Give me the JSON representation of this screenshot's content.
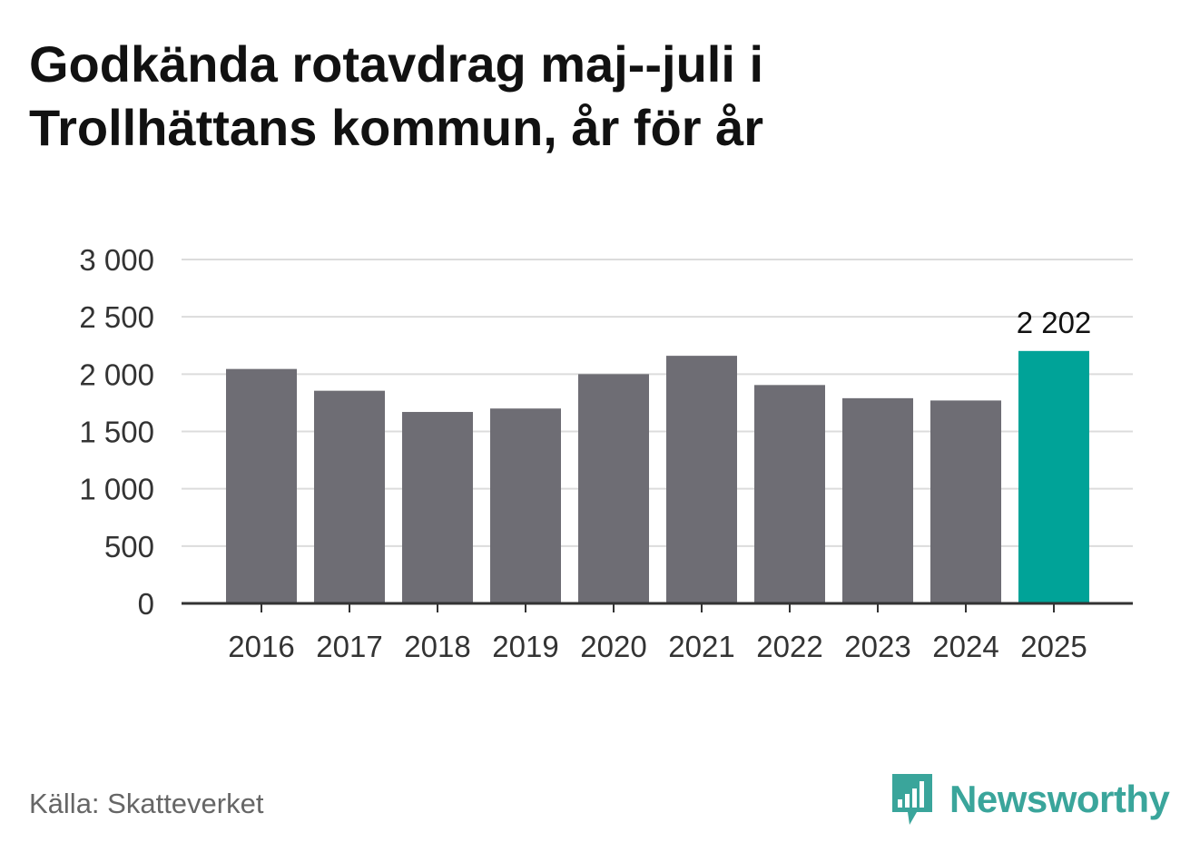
{
  "title": {
    "line1": "Godkända rotavdrag maj--juli i",
    "line2": "Trollhättans kommun, år för år"
  },
  "source": "Källa: Skatteverket",
  "brand": {
    "name": "Newsworthy",
    "logo_icon": "bar-chart-speech-bubble-icon",
    "color": "#3aa59b"
  },
  "colors": {
    "bar_default": "#6e6d74",
    "bar_highlight": "#00a398",
    "gridline": "#dcdcdc",
    "axis": "#333333"
  },
  "chart_data": {
    "type": "bar",
    "title": "Godkända rotavdrag maj--juli i Trollhättans kommun, år för år",
    "xlabel": "",
    "ylabel": "",
    "categories": [
      "2016",
      "2017",
      "2018",
      "2019",
      "2020",
      "2021",
      "2022",
      "2023",
      "2024",
      "2025"
    ],
    "values": [
      2045,
      1855,
      1670,
      1700,
      2000,
      2160,
      1905,
      1790,
      1770,
      2202
    ],
    "highlight_index": 9,
    "data_labels": [
      {
        "index": 9,
        "text": "2 202"
      }
    ],
    "ylim": [
      0,
      3000
    ],
    "yticks": [
      0,
      500,
      1000,
      1500,
      2000,
      2500,
      3000
    ],
    "ytick_labels": [
      "0",
      "500",
      "1 000",
      "1 500",
      "2 000",
      "2 500",
      "3 000"
    ],
    "grid": true,
    "legend": "none"
  }
}
